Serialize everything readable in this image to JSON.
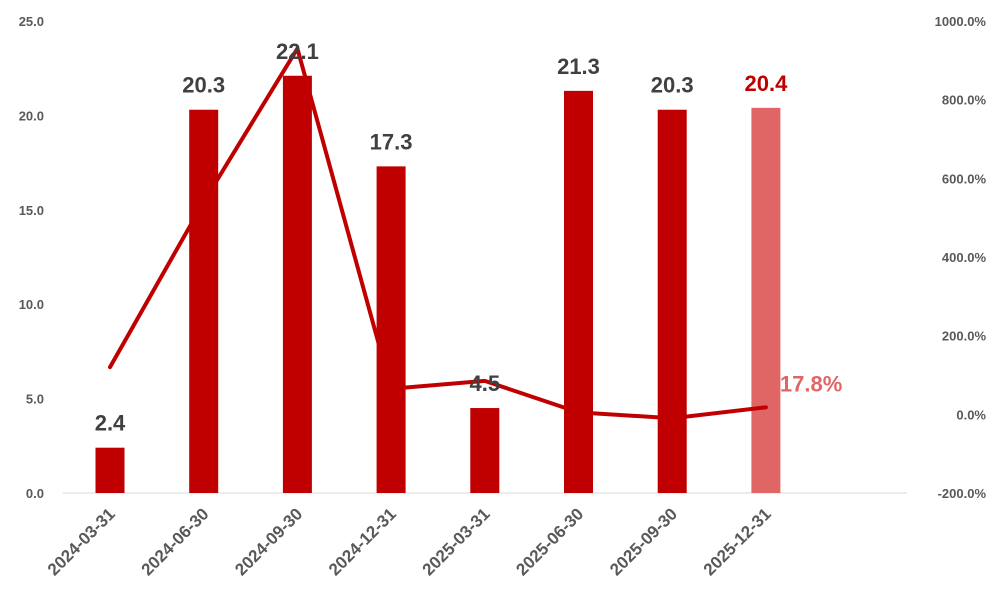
{
  "chart_data": {
    "type": "bar",
    "categories": [
      "2024-03-31",
      "2024-06-30",
      "2024-09-30",
      "2024-12-31",
      "2025-03-31",
      "2025-06-30",
      "2025-09-30",
      "2025-12-31"
    ],
    "series": [
      {
        "type": "bar",
        "axis": "left",
        "values": [
          2.4,
          20.3,
          22.1,
          17.3,
          4.5,
          21.3,
          20.3,
          20.4
        ],
        "labels": [
          "2.4",
          "20.3",
          "22.1",
          "17.3",
          "4.5",
          "21.3",
          "20.3",
          "20.4"
        ],
        "color": "#C00000",
        "last_color": "#E06666"
      },
      {
        "type": "line",
        "axis": "right",
        "values": [
          120,
          540,
          930,
          65,
          85,
          5,
          -10,
          17.8
        ],
        "labels": [
          "",
          "",
          "",
          "",
          "",
          "",
          "",
          "17.8%"
        ],
        "color": "#C00000"
      }
    ],
    "y_left": {
      "min": 0,
      "max": 25,
      "ticks": [
        "0.0",
        "5.0",
        "10.0",
        "15.0",
        "20.0",
        "25.0"
      ]
    },
    "y_right": {
      "min": -200,
      "max": 1000,
      "ticks": [
        "-200.0%",
        "0.0%",
        "200.0%",
        "400.0%",
        "600.0%",
        "800.0%",
        "1000.0%"
      ]
    },
    "colors": {
      "bar": "#C00000",
      "bar_last": "#E06666",
      "label_dark": "#404040",
      "label_last": "#C00000",
      "line_label": "#E06666",
      "axis": "#D9D9D9",
      "tick": "#595959"
    },
    "grid": false,
    "legend": "none"
  }
}
